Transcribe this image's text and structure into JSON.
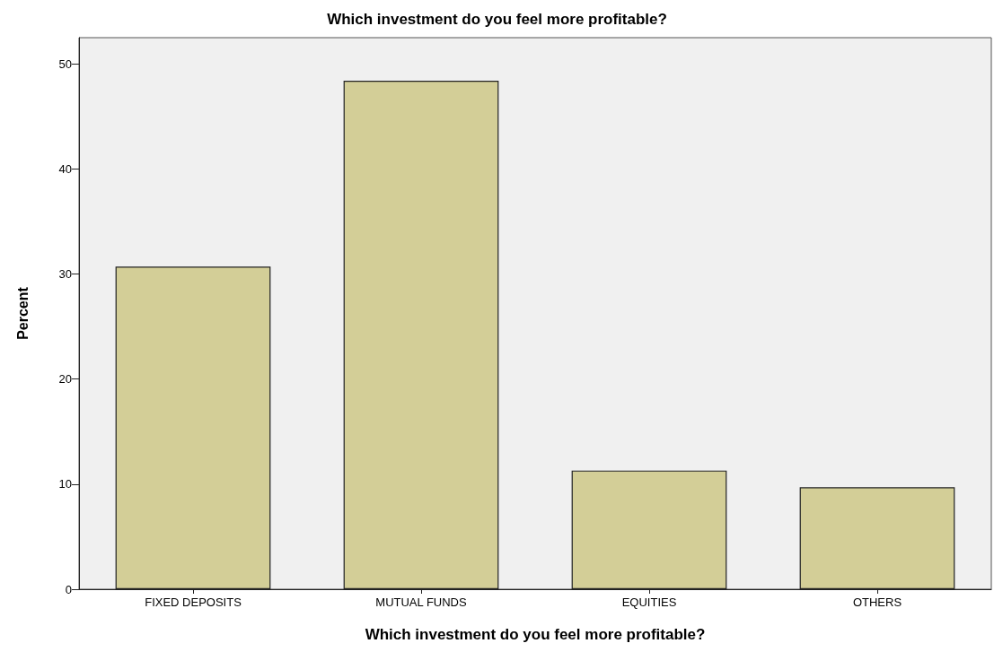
{
  "chart_data": {
    "type": "bar",
    "title": "Which investment do you feel more profitable?",
    "xlabel": "Which investment do you feel more profitable?",
    "ylabel": "Percent",
    "categories": [
      "FIXED DEPOSITS",
      "MUTUAL FUNDS",
      "EQUITIES",
      "OTHERS"
    ],
    "values": [
      30.7,
      48.4,
      11.3,
      9.7
    ],
    "color": "#d3ce97",
    "ylim": [
      0,
      52.5
    ],
    "yticks": [
      0,
      10,
      20,
      30,
      40,
      50
    ],
    "grid": false
  }
}
